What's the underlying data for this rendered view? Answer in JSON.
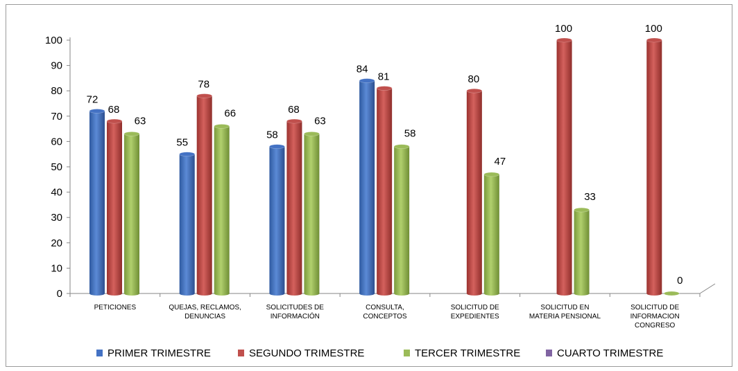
{
  "chart_data": {
    "type": "bar",
    "categories": [
      [
        "PETICIONES"
      ],
      [
        "QUEJAS, RECLAMOS,",
        "DENUNCIAS"
      ],
      [
        "SOLICITUDES DE",
        "INFORMACIÓN"
      ],
      [
        "CONSULTA,",
        "CONCEPTOS"
      ],
      [
        "SOLICITUD DE",
        "EXPEDIENTES"
      ],
      [
        "SOLICITUD EN",
        "MATERIA PENSIONAL"
      ],
      [
        "SOLICITUD DE",
        "INFORMACION",
        "CONGRESO"
      ]
    ],
    "series": [
      {
        "name": "PRIMER TRIMESTRE",
        "color": "#4472c4",
        "values": [
          72,
          55,
          58,
          84,
          null,
          null,
          null
        ]
      },
      {
        "name": "SEGUNDO TRIMESTRE",
        "color": "#c0504d",
        "values": [
          68,
          78,
          68,
          81,
          80,
          100,
          100
        ]
      },
      {
        "name": "TERCER TRIMESTRE",
        "color": "#9bbb59",
        "values": [
          63,
          66,
          63,
          58,
          47,
          33,
          0
        ]
      },
      {
        "name": "CUARTO TRIMESTRE",
        "color": "#8064a2",
        "values": [
          null,
          null,
          null,
          null,
          null,
          null,
          null
        ]
      }
    ],
    "yticks": [
      0,
      10,
      20,
      30,
      40,
      50,
      60,
      70,
      80,
      90,
      100
    ],
    "ylim": [
      0,
      100
    ],
    "grid": false,
    "legend_position": "bottom",
    "title": "",
    "xlabel": "",
    "ylabel": ""
  }
}
